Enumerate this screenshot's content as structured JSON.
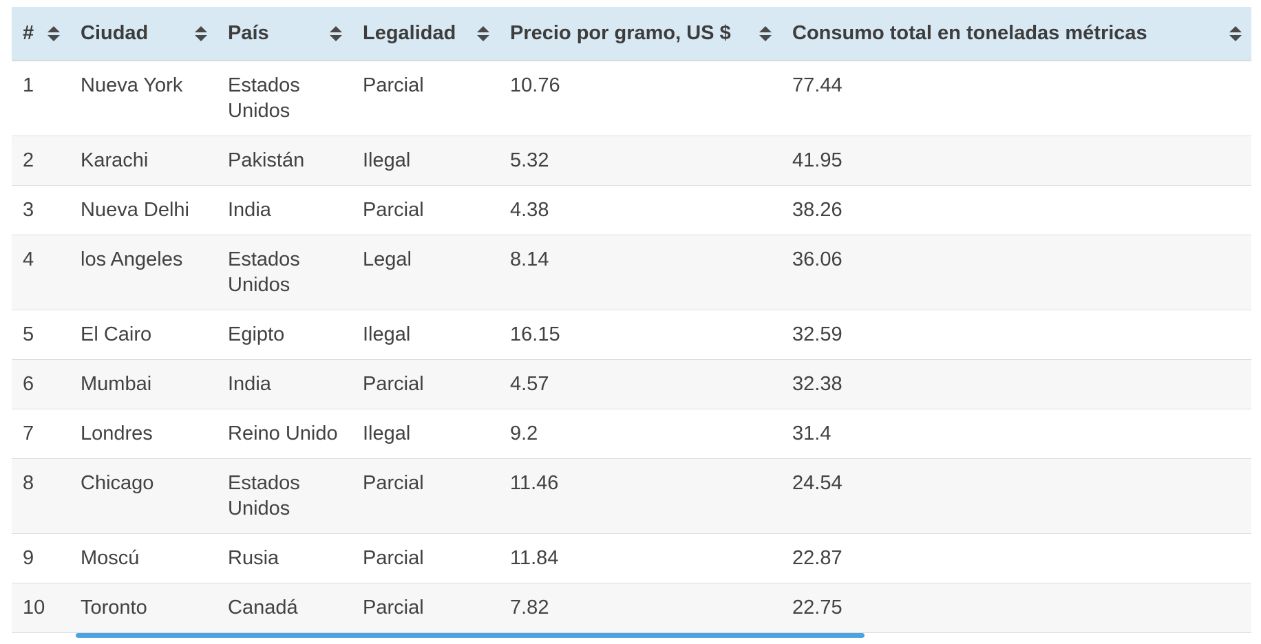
{
  "table": {
    "columns": [
      {
        "key": "rank",
        "label": "#"
      },
      {
        "key": "city",
        "label": "Ciudad"
      },
      {
        "key": "country",
        "label": "País"
      },
      {
        "key": "legality",
        "label": "Legalidad"
      },
      {
        "key": "price",
        "label": "Precio por gramo, US $"
      },
      {
        "key": "consumption",
        "label": "Consumo total en toneladas métricas"
      }
    ],
    "rows": [
      {
        "rank": "1",
        "city": "Nueva York",
        "country": "Estados Unidos",
        "legality": "Parcial",
        "price": "10.76",
        "consumption": "77.44"
      },
      {
        "rank": "2",
        "city": "Karachi",
        "country": "Pakistán",
        "legality": "Ilegal",
        "price": "5.32",
        "consumption": "41.95"
      },
      {
        "rank": "3",
        "city": "Nueva Delhi",
        "country": "India",
        "legality": "Parcial",
        "price": "4.38",
        "consumption": "38.26"
      },
      {
        "rank": "4",
        "city": "los Angeles",
        "country": "Estados Unidos",
        "legality": "Legal",
        "price": "8.14",
        "consumption": "36.06"
      },
      {
        "rank": "5",
        "city": "El Cairo",
        "country": "Egipto",
        "legality": "Ilegal",
        "price": "16.15",
        "consumption": "32.59"
      },
      {
        "rank": "6",
        "city": "Mumbai",
        "country": "India",
        "legality": "Parcial",
        "price": "4.57",
        "consumption": "32.38"
      },
      {
        "rank": "7",
        "city": "Londres",
        "country": "Reino Unido",
        "legality": "Ilegal",
        "price": "9.2",
        "consumption": "31.4"
      },
      {
        "rank": "8",
        "city": "Chicago",
        "country": "Estados Unidos",
        "legality": "Parcial",
        "price": "11.46",
        "consumption": "24.54"
      },
      {
        "rank": "9",
        "city": "Moscú",
        "country": "Rusia",
        "legality": "Parcial",
        "price": "11.84",
        "consumption": "22.87"
      },
      {
        "rank": "10",
        "city": "Toronto",
        "country": "Canadá",
        "legality": "Parcial",
        "price": "7.82",
        "consumption": "22.75"
      }
    ]
  },
  "icons": {
    "sort": "sort-arrows-icon"
  },
  "colors": {
    "header_bg": "#d9e9f4",
    "alt_row_bg": "#f7f7f7",
    "scrollbar_thumb": "#4da3dd"
  }
}
